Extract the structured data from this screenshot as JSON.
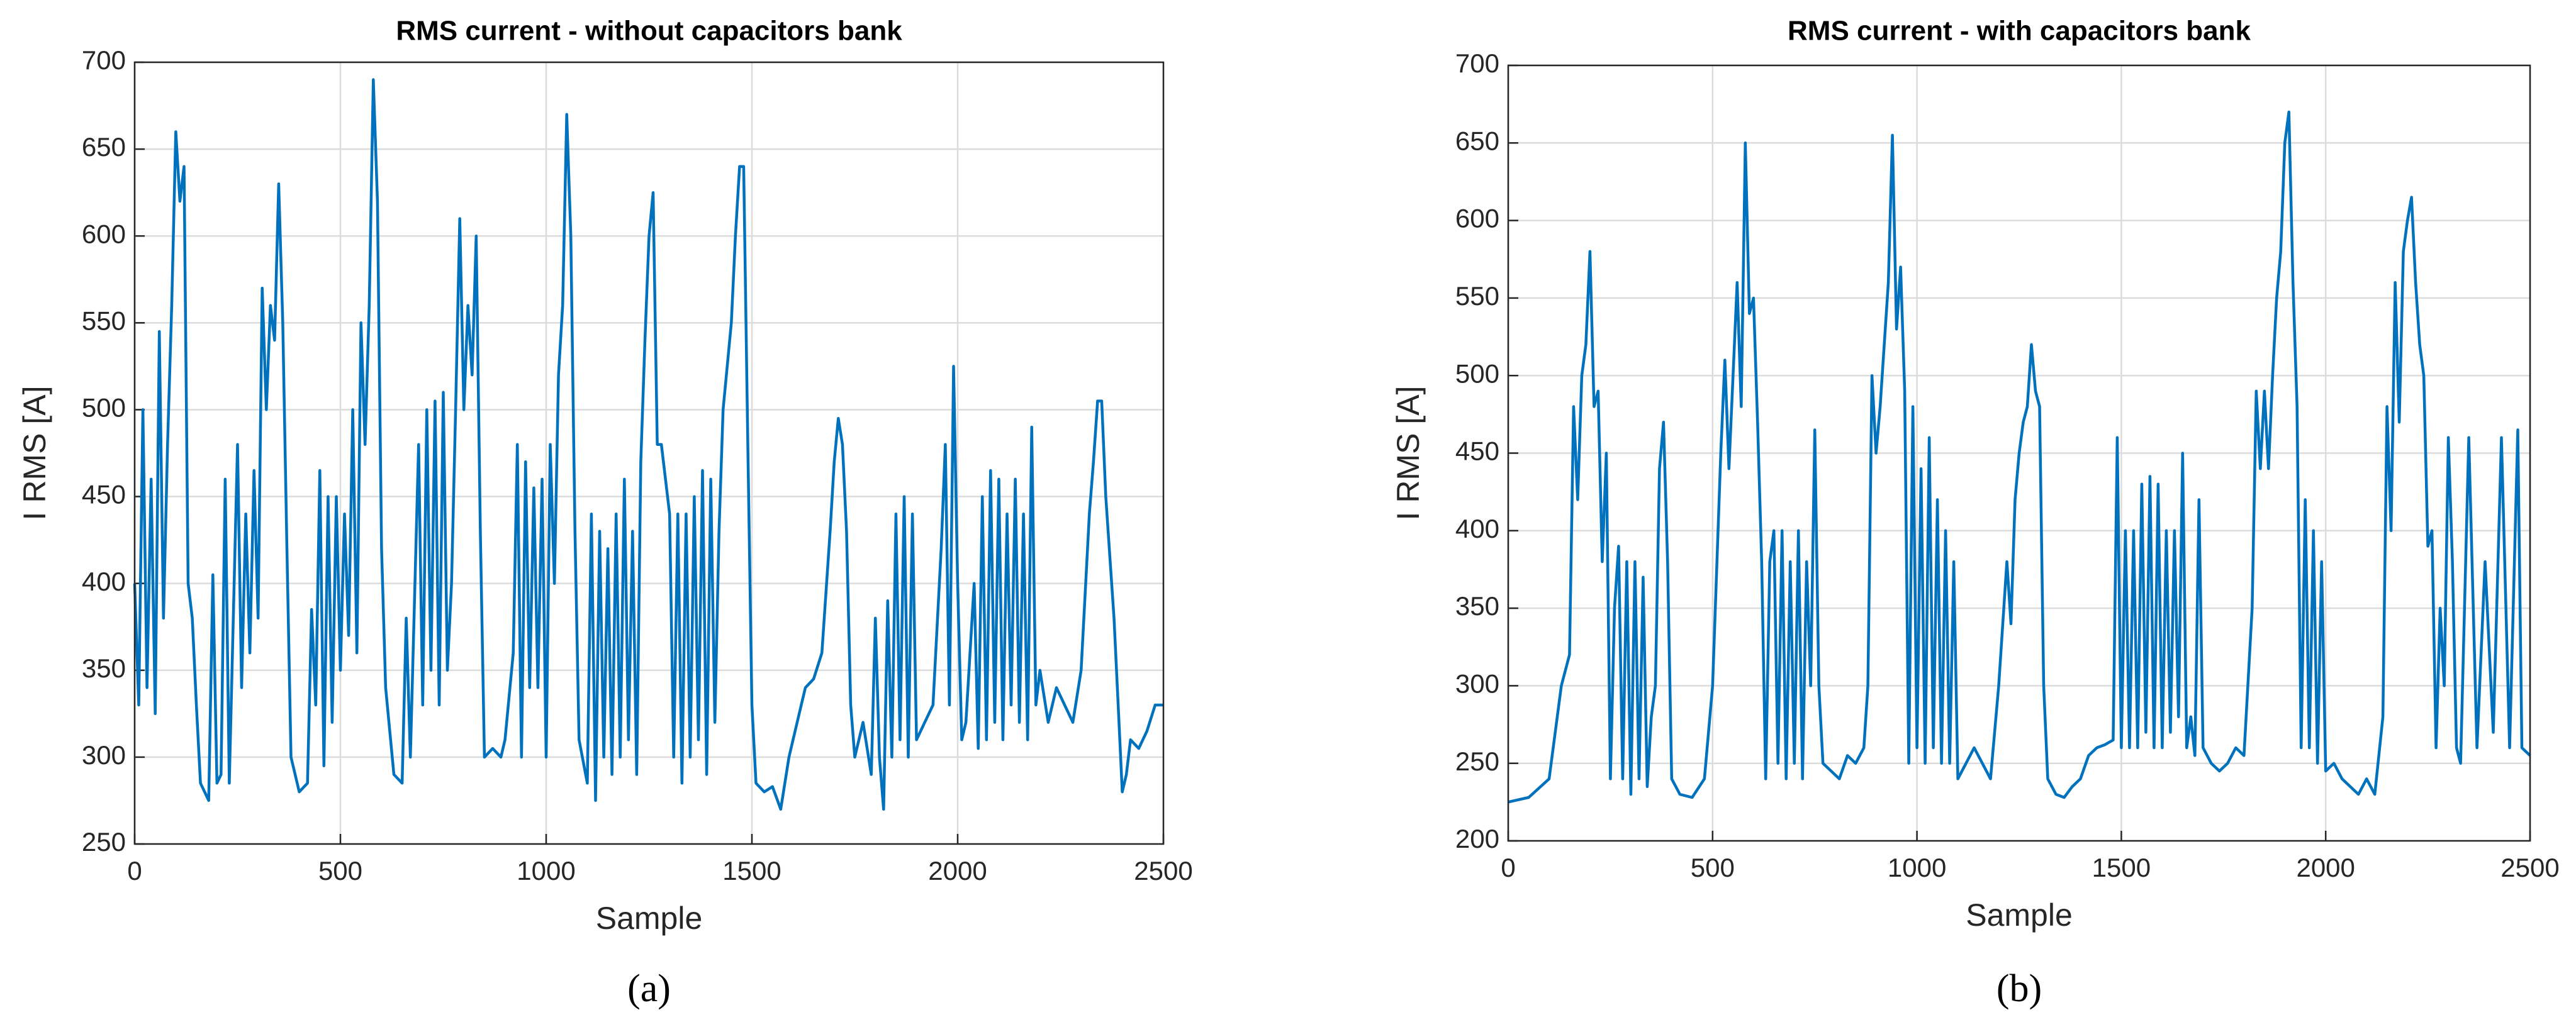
{
  "chart_data": [
    {
      "type": "line",
      "title": "RMS current - without capacitors bank",
      "x_label": "Sample",
      "y_label": "I RMS [A]",
      "caption": "(a)",
      "color": "#0072bd",
      "grid": true,
      "xlim": [
        0,
        2500
      ],
      "xticks": [
        0,
        500,
        1000,
        1500,
        2000,
        2500
      ],
      "ylim": [
        250,
        700
      ],
      "yticks": [
        250,
        300,
        350,
        400,
        450,
        500,
        550,
        600,
        650,
        700
      ],
      "x": [
        0,
        10,
        20,
        30,
        40,
        50,
        60,
        70,
        80,
        90,
        100,
        110,
        120,
        130,
        140,
        150,
        160,
        170,
        180,
        190,
        200,
        210,
        220,
        230,
        250,
        260,
        270,
        280,
        290,
        300,
        310,
        320,
        330,
        340,
        350,
        360,
        370,
        380,
        400,
        420,
        430,
        440,
        450,
        460,
        470,
        480,
        490,
        500,
        510,
        520,
        530,
        540,
        550,
        560,
        570,
        580,
        590,
        600,
        610,
        630,
        650,
        660,
        670,
        690,
        700,
        710,
        720,
        730,
        740,
        750,
        760,
        770,
        780,
        790,
        800,
        810,
        820,
        830,
        840,
        850,
        870,
        890,
        900,
        920,
        930,
        940,
        950,
        960,
        970,
        980,
        990,
        1000,
        1010,
        1020,
        1030,
        1040,
        1050,
        1060,
        1070,
        1080,
        1100,
        1110,
        1120,
        1130,
        1140,
        1150,
        1160,
        1170,
        1180,
        1190,
        1200,
        1210,
        1220,
        1230,
        1240,
        1250,
        1260,
        1270,
        1280,
        1300,
        1310,
        1320,
        1330,
        1340,
        1350,
        1360,
        1370,
        1380,
        1390,
        1400,
        1410,
        1420,
        1430,
        1450,
        1460,
        1470,
        1480,
        1490,
        1500,
        1510,
        1530,
        1550,
        1570,
        1590,
        1610,
        1630,
        1650,
        1670,
        1690,
        1700,
        1710,
        1720,
        1730,
        1740,
        1750,
        1770,
        1790,
        1800,
        1810,
        1820,
        1830,
        1840,
        1850,
        1860,
        1870,
        1880,
        1890,
        1900,
        1920,
        1940,
        1960,
        1970,
        1980,
        1990,
        2000,
        2010,
        2020,
        2040,
        2050,
        2060,
        2070,
        2080,
        2090,
        2100,
        2110,
        2120,
        2130,
        2140,
        2150,
        2160,
        2170,
        2180,
        2190,
        2200,
        2220,
        2240,
        2260,
        2280,
        2300,
        2320,
        2330,
        2340,
        2350,
        2360,
        2380,
        2390,
        2400,
        2410,
        2420,
        2440,
        2460,
        2480,
        2500
      ],
      "values": [
        400,
        330,
        500,
        340,
        460,
        325,
        545,
        380,
        480,
        560,
        660,
        620,
        640,
        400,
        380,
        330,
        285,
        280,
        275,
        405,
        285,
        290,
        460,
        285,
        480,
        340,
        440,
        360,
        465,
        380,
        570,
        500,
        560,
        540,
        630,
        550,
        420,
        300,
        280,
        285,
        385,
        330,
        465,
        295,
        450,
        320,
        450,
        350,
        440,
        370,
        500,
        360,
        550,
        480,
        560,
        690,
        620,
        420,
        340,
        290,
        285,
        380,
        300,
        480,
        330,
        500,
        350,
        505,
        330,
        510,
        350,
        400,
        500,
        610,
        500,
        560,
        520,
        600,
        430,
        300,
        305,
        300,
        310,
        360,
        480,
        300,
        470,
        340,
        455,
        340,
        460,
        300,
        480,
        400,
        520,
        560,
        670,
        600,
        430,
        310,
        285,
        440,
        275,
        430,
        300,
        420,
        290,
        440,
        300,
        460,
        310,
        430,
        290,
        470,
        540,
        600,
        625,
        480,
        480,
        440,
        300,
        440,
        285,
        440,
        300,
        450,
        310,
        465,
        290,
        460,
        320,
        430,
        500,
        550,
        600,
        640,
        640,
        480,
        330,
        285,
        280,
        283,
        270,
        300,
        320,
        340,
        345,
        360,
        430,
        470,
        495,
        480,
        430,
        330,
        300,
        320,
        290,
        380,
        300,
        270,
        390,
        300,
        440,
        310,
        450,
        300,
        440,
        310,
        320,
        330,
        420,
        480,
        330,
        525,
        400,
        310,
        320,
        400,
        305,
        450,
        310,
        465,
        320,
        460,
        310,
        440,
        330,
        460,
        320,
        440,
        310,
        490,
        330,
        350,
        320,
        340,
        330,
        320,
        350,
        440,
        470,
        505,
        505,
        450,
        380,
        330,
        280,
        290,
        310,
        305,
        315,
        330,
        330
      ]
    },
    {
      "type": "line",
      "title": "RMS current - with capacitors bank",
      "x_label": "Sample",
      "y_label": "I RMS [A]",
      "caption": "(b)",
      "color": "#0072bd",
      "grid": true,
      "xlim": [
        0,
        2500
      ],
      "xticks": [
        0,
        500,
        1000,
        1500,
        2000,
        2500
      ],
      "ylim": [
        200,
        700
      ],
      "yticks": [
        200,
        250,
        300,
        350,
        400,
        450,
        500,
        550,
        600,
        650,
        700
      ],
      "x": [
        0,
        50,
        100,
        130,
        150,
        160,
        170,
        180,
        190,
        200,
        210,
        220,
        230,
        240,
        250,
        260,
        270,
        280,
        290,
        300,
        310,
        320,
        330,
        340,
        350,
        360,
        370,
        380,
        390,
        400,
        420,
        450,
        480,
        500,
        520,
        530,
        540,
        550,
        560,
        570,
        580,
        590,
        600,
        610,
        620,
        630,
        640,
        650,
        660,
        670,
        680,
        690,
        700,
        710,
        720,
        730,
        740,
        750,
        760,
        770,
        790,
        810,
        830,
        850,
        870,
        880,
        890,
        900,
        910,
        920,
        930,
        940,
        950,
        960,
        970,
        980,
        990,
        1000,
        1010,
        1020,
        1030,
        1040,
        1050,
        1060,
        1070,
        1080,
        1090,
        1100,
        1120,
        1140,
        1160,
        1180,
        1200,
        1220,
        1230,
        1240,
        1250,
        1260,
        1270,
        1280,
        1290,
        1300,
        1310,
        1320,
        1340,
        1360,
        1380,
        1400,
        1420,
        1440,
        1460,
        1480,
        1490,
        1500,
        1510,
        1520,
        1530,
        1540,
        1550,
        1560,
        1570,
        1580,
        1590,
        1600,
        1610,
        1620,
        1630,
        1640,
        1650,
        1660,
        1670,
        1680,
        1690,
        1700,
        1720,
        1740,
        1760,
        1780,
        1800,
        1820,
        1830,
        1840,
        1850,
        1860,
        1870,
        1880,
        1890,
        1900,
        1910,
        1920,
        1930,
        1940,
        1950,
        1960,
        1970,
        1980,
        1990,
        2000,
        2020,
        2040,
        2060,
        2080,
        2100,
        2120,
        2140,
        2150,
        2160,
        2170,
        2180,
        2190,
        2200,
        2210,
        2220,
        2230,
        2240,
        2250,
        2260,
        2270,
        2280,
        2290,
        2300,
        2310,
        2320,
        2330,
        2350,
        2370,
        2390,
        2410,
        2430,
        2450,
        2470,
        2480,
        2500
      ],
      "values": [
        225,
        228,
        240,
        300,
        320,
        480,
        420,
        500,
        520,
        580,
        480,
        490,
        380,
        450,
        240,
        350,
        390,
        240,
        380,
        230,
        380,
        240,
        370,
        235,
        280,
        300,
        440,
        470,
        380,
        240,
        230,
        228,
        240,
        300,
        450,
        510,
        440,
        500,
        560,
        480,
        650,
        540,
        550,
        470,
        380,
        240,
        380,
        400,
        250,
        400,
        240,
        380,
        250,
        400,
        240,
        380,
        300,
        465,
        300,
        250,
        245,
        240,
        255,
        250,
        260,
        300,
        500,
        450,
        480,
        520,
        560,
        655,
        530,
        570,
        490,
        250,
        480,
        260,
        440,
        250,
        460,
        260,
        420,
        250,
        400,
        250,
        380,
        240,
        250,
        260,
        250,
        240,
        300,
        380,
        340,
        420,
        450,
        470,
        480,
        520,
        490,
        480,
        300,
        240,
        230,
        228,
        235,
        240,
        255,
        260,
        262,
        265,
        460,
        260,
        400,
        260,
        400,
        260,
        430,
        270,
        435,
        260,
        430,
        260,
        400,
        270,
        400,
        280,
        450,
        260,
        280,
        255,
        420,
        260,
        250,
        245,
        250,
        260,
        255,
        350,
        490,
        440,
        490,
        440,
        500,
        550,
        580,
        650,
        670,
        560,
        480,
        260,
        420,
        260,
        400,
        250,
        380,
        245,
        250,
        240,
        235,
        230,
        240,
        230,
        280,
        480,
        400,
        560,
        470,
        580,
        600,
        615,
        560,
        520,
        500,
        390,
        400,
        260,
        350,
        300,
        460,
        380,
        260,
        250,
        460,
        260,
        380,
        270,
        460,
        260,
        465,
        260,
        255
      ]
    }
  ]
}
